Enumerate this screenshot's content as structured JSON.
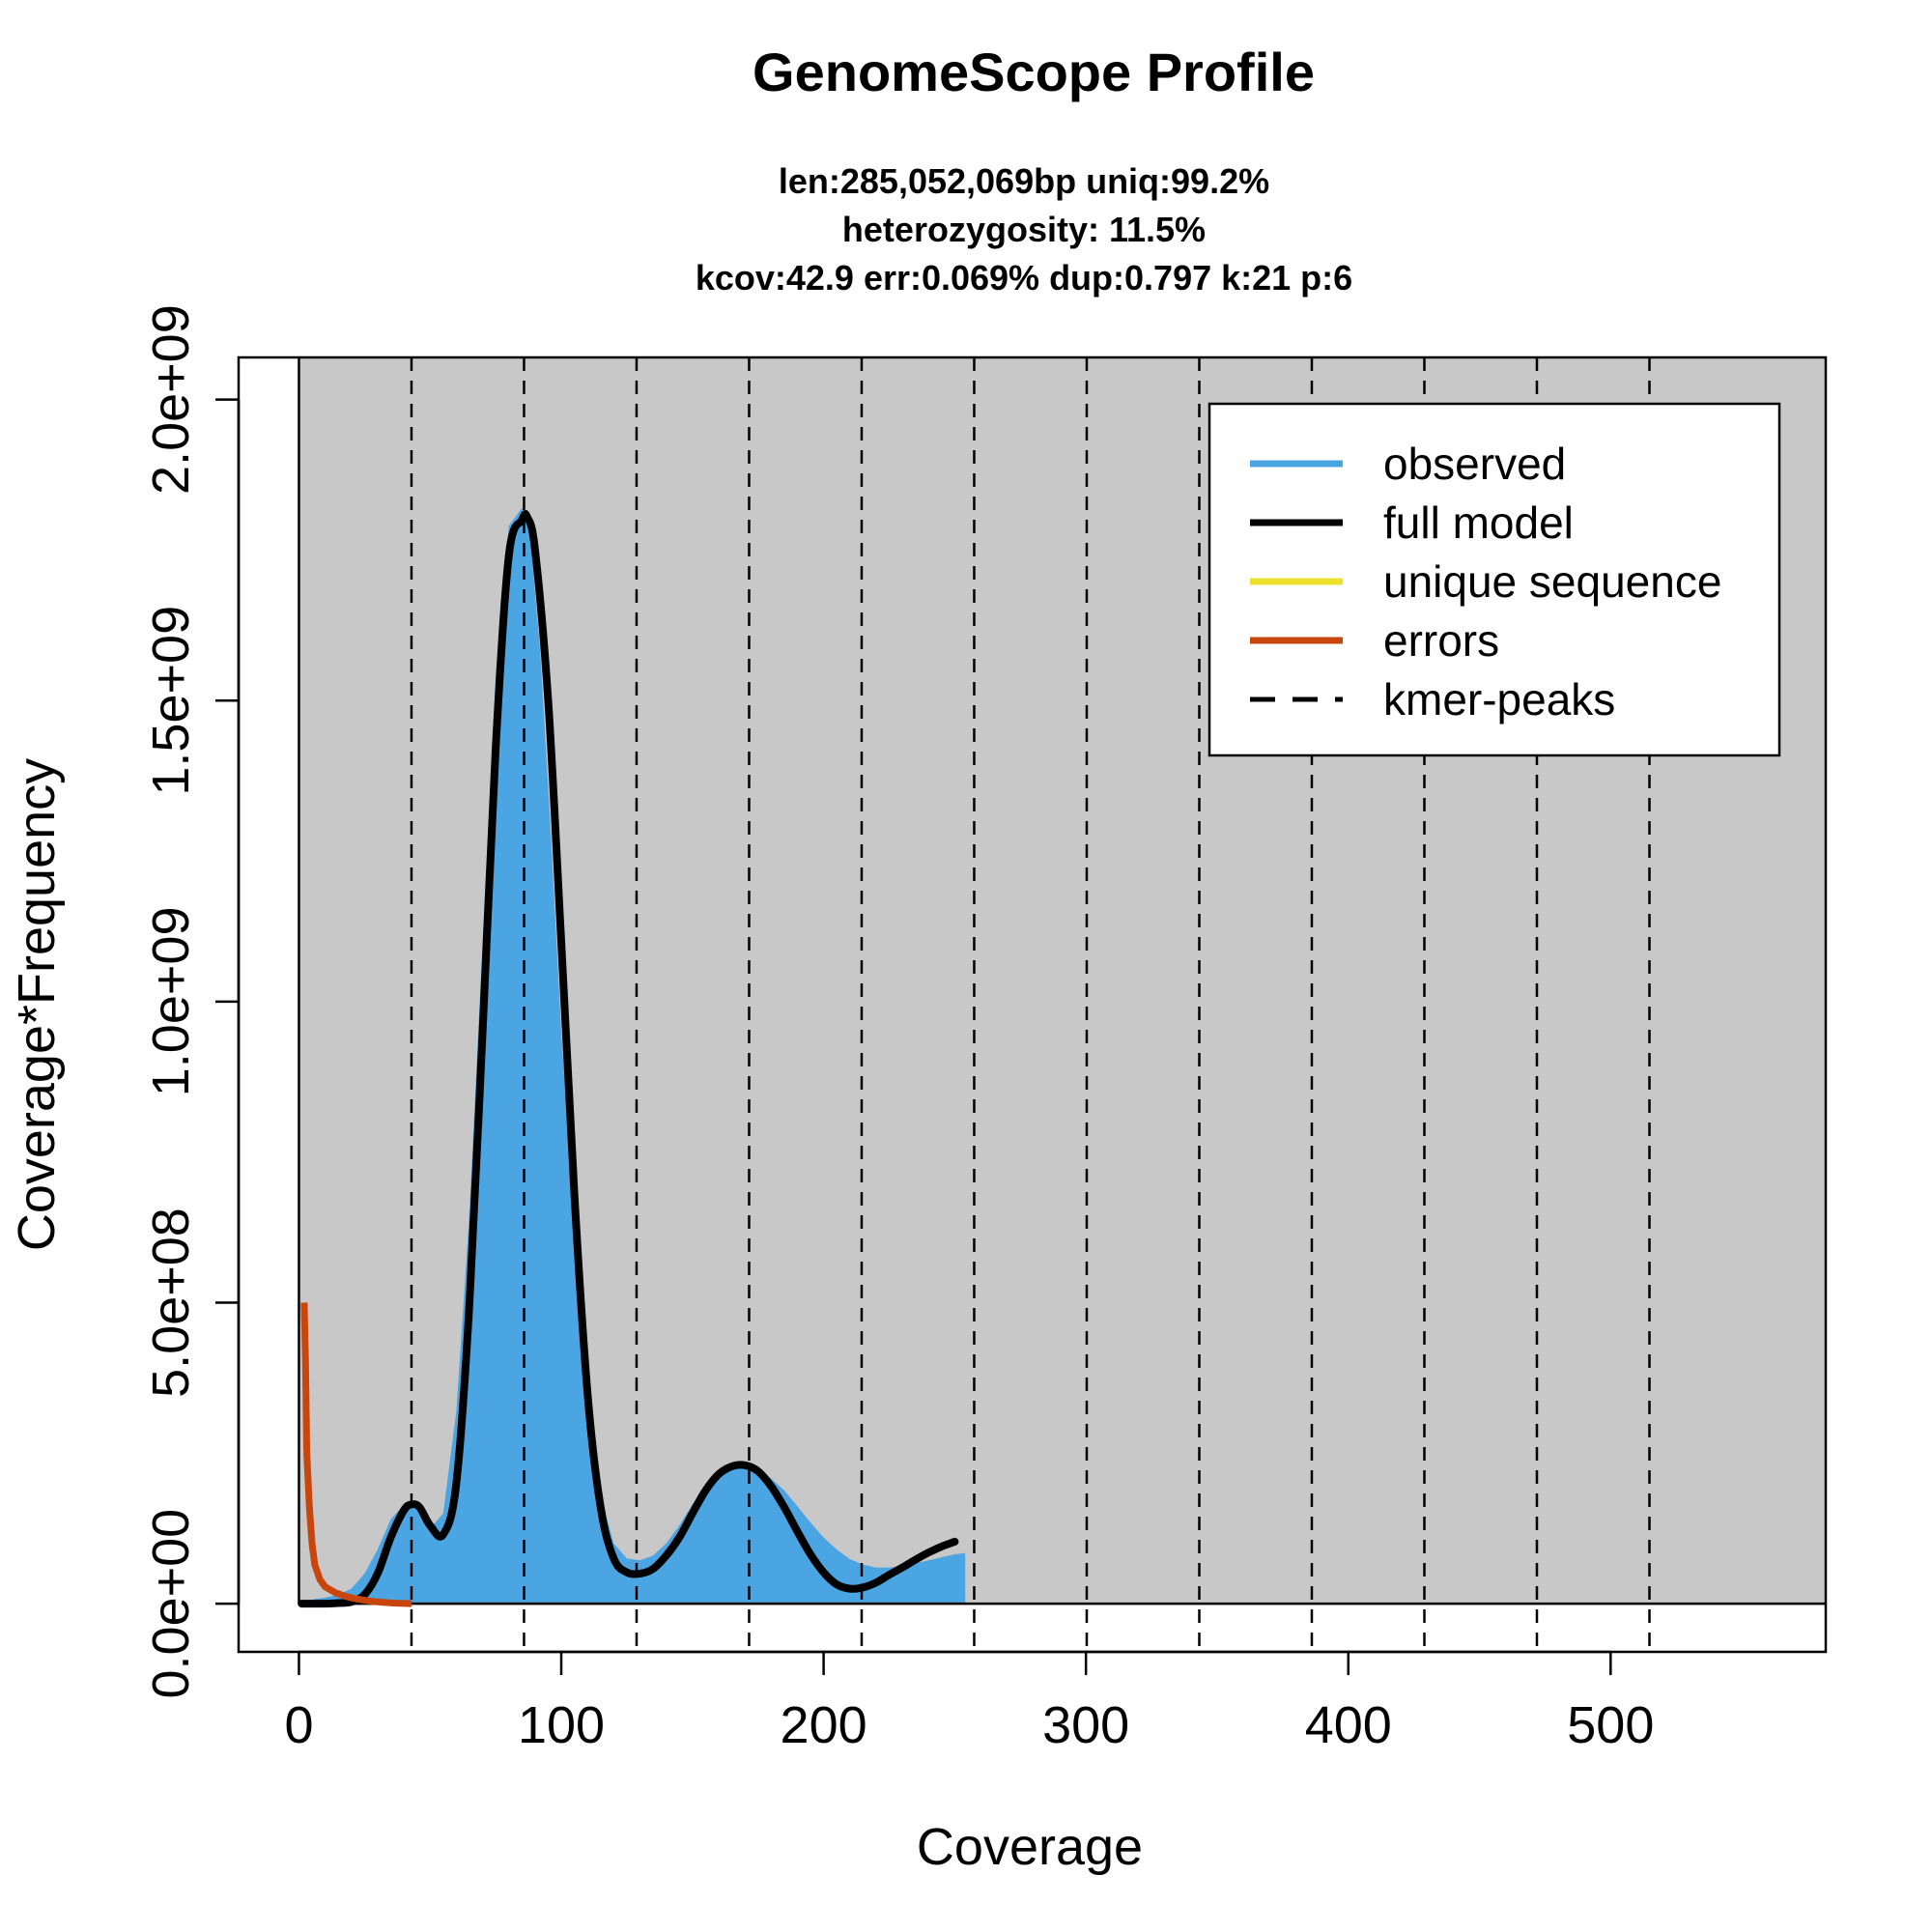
{
  "chart_data": {
    "type": "area",
    "title": "GenomeScope Profile",
    "subtitle_lines": [
      "len:285,052,069bp uniq:99.2%",
      "heterozygosity: 11.5%",
      "kcov:42.9 err:0.069%  dup:0.797  k:21 p:6"
    ],
    "xlabel": "Coverage",
    "ylabel": "Coverage*Frequency",
    "xlim": [
      -23,
      582
    ],
    "ylim": [
      -80000000,
      2070000000
    ],
    "plot_region_x": [
      0,
      582
    ],
    "plot_region_y": [
      0,
      2070000000
    ],
    "x_ticks": [
      0,
      100,
      200,
      300,
      400,
      500
    ],
    "x_tick_labels": [
      "0",
      "100",
      "200",
      "300",
      "400",
      "500"
    ],
    "y_ticks": [
      0,
      500000000,
      1000000000,
      1500000000,
      2000000000
    ],
    "y_tick_labels": [
      "0.0e+00",
      "5.0e+08",
      "1.0e+09",
      "1.5e+09",
      "2.0e+09"
    ],
    "background_color": "#c8c8c8",
    "kmer_peaks": [
      42.9,
      85.8,
      128.7,
      171.6,
      214.5,
      257.4,
      300.3,
      343.2,
      386.1,
      429.0,
      471.9,
      514.8
    ],
    "series": [
      {
        "name": "observed",
        "color": "#4aa5e2",
        "x": [
          1,
          3,
          6,
          10,
          15,
          20,
          25,
          30,
          35,
          40,
          43,
          46,
          50,
          55,
          60,
          65,
          70,
          75,
          80,
          85,
          88,
          92,
          96,
          100,
          105,
          110,
          115,
          120,
          125,
          130,
          135,
          140,
          145,
          150,
          155,
          160,
          165,
          170,
          175,
          180,
          185,
          190,
          195,
          200,
          205,
          210,
          215,
          220,
          225,
          230,
          235,
          240,
          245,
          250,
          254
        ],
        "y": [
          0,
          3000000,
          8000000,
          10000000,
          15000000,
          25000000,
          50000000,
          90000000,
          140000000,
          165000000,
          165000000,
          155000000,
          125000000,
          150000000,
          320000000,
          650000000,
          1100000000,
          1540000000,
          1790000000,
          1820000000,
          1780000000,
          1580000000,
          1280000000,
          950000000,
          620000000,
          350000000,
          180000000,
          100000000,
          75000000,
          72000000,
          80000000,
          100000000,
          130000000,
          165000000,
          195000000,
          218000000,
          230000000,
          230000000,
          222000000,
          208000000,
          188000000,
          162000000,
          135000000,
          110000000,
          90000000,
          74000000,
          65000000,
          60000000,
          60000000,
          63000000,
          67000000,
          72000000,
          77000000,
          82000000,
          84000000
        ]
      },
      {
        "name": "full model",
        "color": "#000000",
        "x": [
          1,
          5,
          10,
          15,
          20,
          25,
          30,
          35,
          40,
          43,
          46,
          50,
          55,
          60,
          65,
          70,
          75,
          80,
          85,
          87,
          90,
          95,
          100,
          105,
          110,
          115,
          120,
          125,
          130,
          135,
          140,
          145,
          150,
          155,
          160,
          165,
          170,
          175,
          180,
          185,
          190,
          195,
          200,
          205,
          210,
          215,
          220,
          225,
          230,
          235,
          240,
          245,
          250
        ],
        "y": [
          0,
          0,
          0,
          1000000,
          3000000,
          15000000,
          50000000,
          110000000,
          155000000,
          165000000,
          160000000,
          130000000,
          115000000,
          200000000,
          500000000,
          950000000,
          1420000000,
          1740000000,
          1800000000,
          1805000000,
          1750000000,
          1500000000,
          1100000000,
          680000000,
          350000000,
          160000000,
          75000000,
          52000000,
          50000000,
          58000000,
          80000000,
          110000000,
          150000000,
          188000000,
          215000000,
          228000000,
          230000000,
          220000000,
          195000000,
          160000000,
          120000000,
          82000000,
          52000000,
          32000000,
          25000000,
          27000000,
          35000000,
          48000000,
          60000000,
          73000000,
          85000000,
          95000000,
          103000000
        ]
      },
      {
        "name": "unique sequence",
        "color": "#ede02d",
        "x": [],
        "y": []
      },
      {
        "name": "errors",
        "color": "#c8460c",
        "x": [
          2,
          2.5,
          3,
          4,
          5,
          6,
          8,
          10,
          14,
          18,
          22,
          26,
          30,
          36,
          43
        ],
        "y": [
          500000000,
          400000000,
          250000000,
          160000000,
          100000000,
          65000000,
          40000000,
          28000000,
          18000000,
          12000000,
          8000000,
          5000000,
          3000000,
          1000000,
          0
        ]
      },
      {
        "name": "kmer-peaks",
        "color": "#000000",
        "x": [],
        "y": []
      }
    ],
    "legend": {
      "position": "top-right",
      "entries": [
        {
          "label": "observed",
          "color": "#4aa5e2",
          "style": "solid"
        },
        {
          "label": "full model",
          "color": "#000000",
          "style": "solid"
        },
        {
          "label": "unique sequence",
          "color": "#ede02d",
          "style": "solid"
        },
        {
          "label": "errors",
          "color": "#c8460c",
          "style": "solid"
        },
        {
          "label": "kmer-peaks",
          "color": "#000000",
          "style": "dashed"
        }
      ]
    }
  }
}
